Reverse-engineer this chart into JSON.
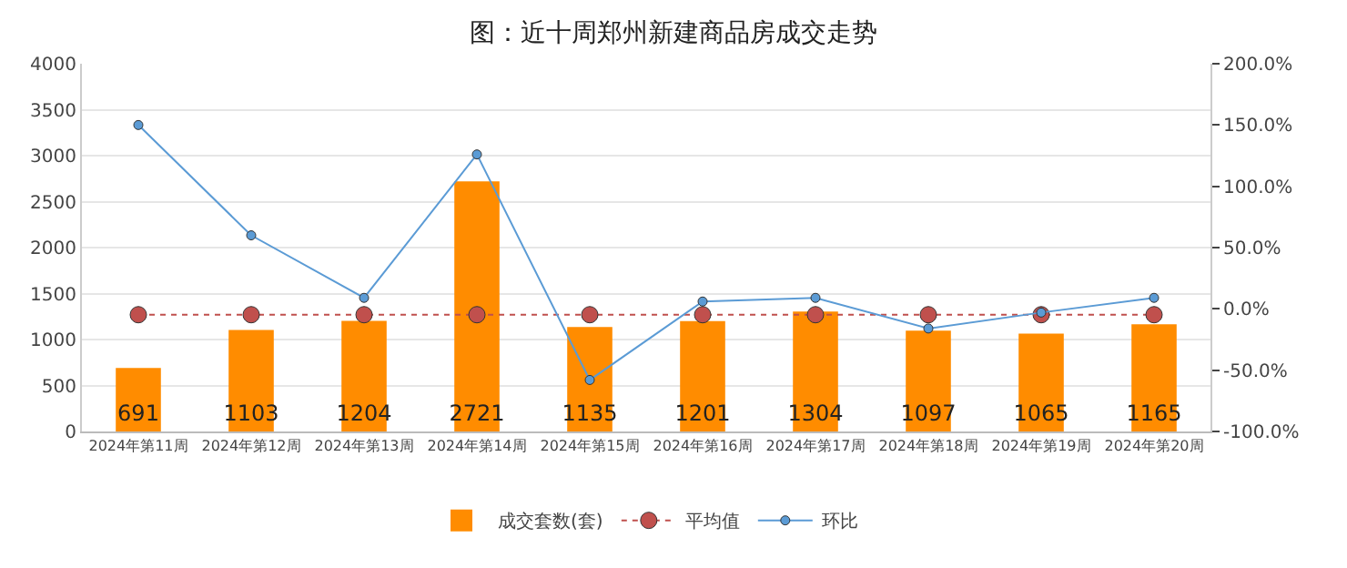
{
  "chart_data": {
    "type": "bar",
    "title": "图：近十周郑州新建商品房成交走势",
    "categories": [
      "2024年第11周",
      "2024年第12周",
      "2024年第13周",
      "2024年第14周",
      "2024年第15周",
      "2024年第16周",
      "2024年第17周",
      "2024年第18周",
      "2024年第19周",
      "2024年第20周"
    ],
    "series": [
      {
        "name": "成交套数(套)",
        "color": "#ff8c00",
        "values": [
          691,
          1103,
          1204,
          2721,
          1135,
          1201,
          1304,
          1097,
          1065,
          1165
        ],
        "value_labels": [
          "691",
          "1103",
          "1204",
          "2721",
          "1135",
          "1201",
          "1304",
          "1097",
          "1065",
          "1165"
        ]
      },
      {
        "name": "平均值",
        "type": "line",
        "color": "#c0504d",
        "line_style": "dotted",
        "marker": "circle",
        "values": [
          1270,
          1270,
          1270,
          1270,
          1270,
          1270,
          1270,
          1270,
          1270,
          1270
        ]
      },
      {
        "name": "环比",
        "type": "line",
        "axis": "y2",
        "color": "#5b9bd5",
        "line_style": "solid",
        "marker": "circle",
        "values": [
          150,
          60,
          9,
          126,
          -58,
          6,
          9,
          -16,
          -3,
          9
        ]
      }
    ],
    "ylim": [
      0,
      4000
    ],
    "yticks": [
      0,
      500,
      1000,
      1500,
      2000,
      2500,
      3000,
      3500,
      4000
    ],
    "y2lim": [
      -100,
      200
    ],
    "y2ticks": [
      {
        "value": -100,
        "label": "-100.0%"
      },
      {
        "value": -50,
        "label": "-50.0%"
      },
      {
        "value": 0,
        "label": "0.0%"
      },
      {
        "value": 50,
        "label": "50.0%"
      },
      {
        "value": 100,
        "label": "100.0%"
      },
      {
        "value": 150,
        "label": "150.0%"
      },
      {
        "value": 200,
        "label": "200.0%"
      }
    ],
    "grid": "y",
    "legend": "bottom"
  }
}
